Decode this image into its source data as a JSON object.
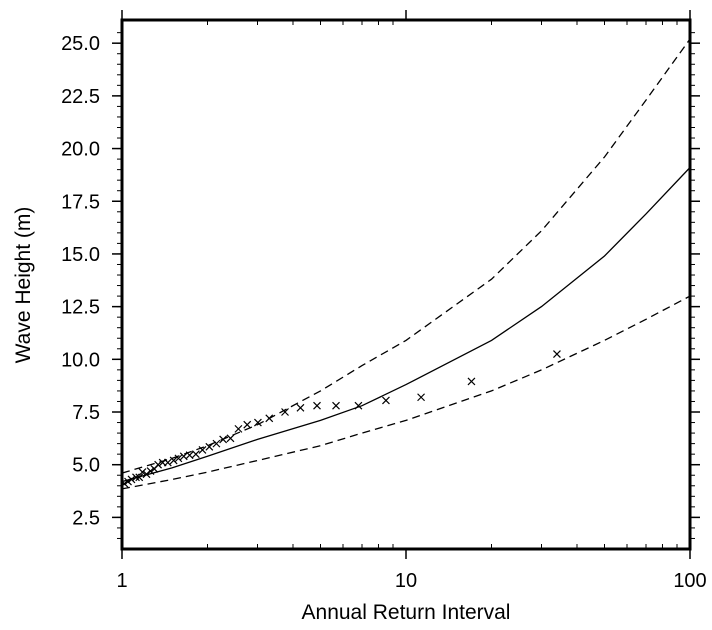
{
  "chart_data": {
    "type": "scatter",
    "title": "",
    "xlabel": "Annual Return Interval",
    "ylabel": "Wave Height (m)",
    "x_scale": "log",
    "xlim": [
      1,
      100
    ],
    "ylim": [
      1.0,
      26.1
    ],
    "grid": false,
    "x_ticks": [
      {
        "value": 1,
        "label": "1"
      },
      {
        "value": 10,
        "label": "10"
      },
      {
        "value": 100,
        "label": "100"
      }
    ],
    "y_ticks": [
      {
        "value": 2.5,
        "label": "2.5"
      },
      {
        "value": 5.0,
        "label": "5.0"
      },
      {
        "value": 7.5,
        "label": "7.5"
      },
      {
        "value": 10.0,
        "label": "10.0"
      },
      {
        "value": 12.5,
        "label": "12.5"
      },
      {
        "value": 15.0,
        "label": "15.0"
      },
      {
        "value": 17.5,
        "label": "17.5"
      },
      {
        "value": 20.0,
        "label": "20.0"
      },
      {
        "value": 22.5,
        "label": "22.5"
      },
      {
        "value": 25.0,
        "label": "25.0"
      }
    ],
    "series": [
      {
        "style": "solid",
        "color": "#000000",
        "points": [
          [
            1,
            4.2
          ],
          [
            1.5,
            4.85
          ],
          [
            2,
            5.4
          ],
          [
            3,
            6.2
          ],
          [
            5,
            7.1
          ],
          [
            7,
            7.8
          ],
          [
            10,
            8.8
          ],
          [
            20,
            10.9
          ],
          [
            30,
            12.5
          ],
          [
            50,
            14.9
          ],
          [
            70,
            16.9
          ],
          [
            100,
            19.1
          ]
        ]
      },
      {
        "style": "dashed",
        "color": "#000000",
        "points": [
          [
            1,
            4.6
          ],
          [
            1.5,
            5.3
          ],
          [
            2,
            5.9
          ],
          [
            3,
            6.9
          ],
          [
            5,
            8.5
          ],
          [
            7,
            9.7
          ],
          [
            10,
            10.9
          ],
          [
            20,
            13.8
          ],
          [
            30,
            16.1
          ],
          [
            50,
            19.6
          ],
          [
            70,
            22.3
          ],
          [
            100,
            25.2
          ]
        ]
      },
      {
        "style": "dashed",
        "color": "#000000",
        "points": [
          [
            1,
            3.85
          ],
          [
            1.5,
            4.3
          ],
          [
            2,
            4.65
          ],
          [
            3,
            5.2
          ],
          [
            5,
            5.9
          ],
          [
            7,
            6.5
          ],
          [
            10,
            7.1
          ],
          [
            20,
            8.5
          ],
          [
            30,
            9.5
          ],
          [
            50,
            10.9
          ],
          [
            70,
            11.9
          ],
          [
            100,
            13.0
          ]
        ]
      },
      {
        "style": "markers",
        "marker": "x",
        "color": "#000000",
        "points": [
          [
            1.02,
            4.1
          ],
          [
            1.05,
            4.2
          ],
          [
            1.08,
            4.3
          ],
          [
            1.12,
            4.4
          ],
          [
            1.15,
            4.4
          ],
          [
            1.18,
            4.65
          ],
          [
            1.22,
            4.55
          ],
          [
            1.26,
            4.7
          ],
          [
            1.3,
            4.8
          ],
          [
            1.34,
            5.0
          ],
          [
            1.39,
            5.1
          ],
          [
            1.45,
            5.1
          ],
          [
            1.52,
            5.2
          ],
          [
            1.58,
            5.3
          ],
          [
            1.65,
            5.4
          ],
          [
            1.73,
            5.45
          ],
          [
            1.82,
            5.5
          ],
          [
            1.92,
            5.7
          ],
          [
            2.03,
            5.85
          ],
          [
            2.15,
            6.0
          ],
          [
            2.27,
            6.2
          ],
          [
            2.41,
            6.25
          ],
          [
            2.57,
            6.7
          ],
          [
            2.76,
            6.9
          ],
          [
            3.01,
            7.0
          ],
          [
            3.3,
            7.2
          ],
          [
            3.75,
            7.5
          ],
          [
            4.25,
            7.7
          ],
          [
            4.86,
            7.8
          ],
          [
            5.67,
            7.8
          ],
          [
            6.8,
            7.8
          ],
          [
            8.5,
            8.05
          ],
          [
            11.3,
            8.2
          ],
          [
            17.0,
            8.95
          ],
          [
            34.0,
            10.25
          ]
        ]
      }
    ]
  }
}
